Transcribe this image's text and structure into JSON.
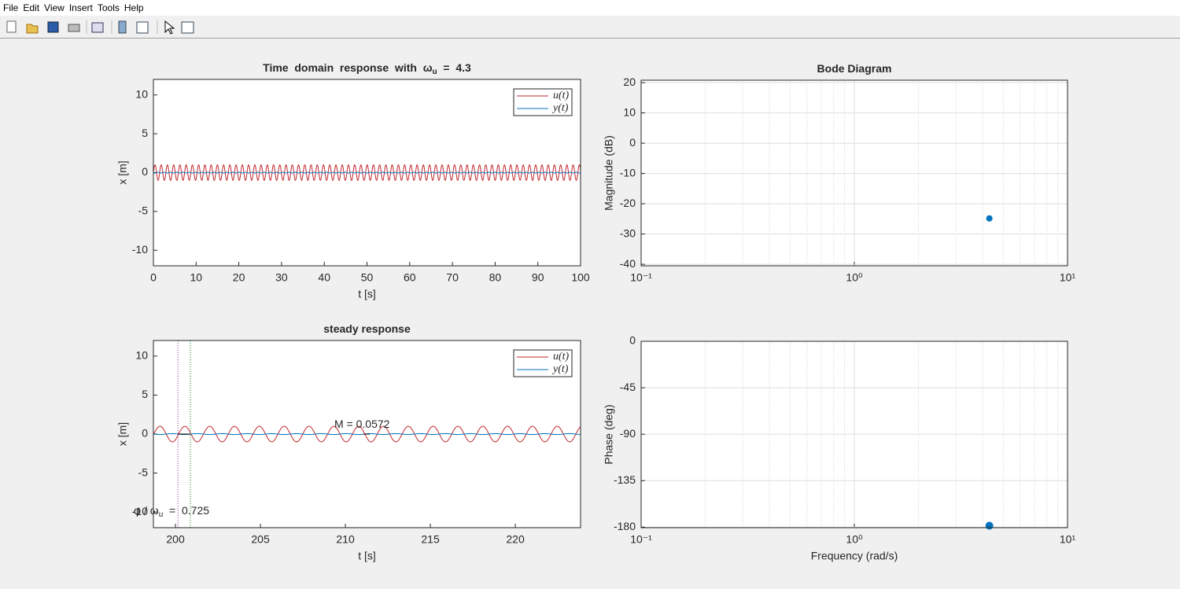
{
  "menu": [
    "File",
    "Edit",
    "View",
    "Insert",
    "Tools",
    "Help"
  ],
  "chart_data": [
    {
      "type": "line",
      "title": {
        "text": "Time  domain  response  with  ω",
        "sub": "u",
        "suffix": "  =  4.3"
      },
      "xlabel": "t [s]",
      "ylabel": "x [m]",
      "xlim": [
        0,
        100
      ],
      "xticks": [
        0,
        10,
        20,
        30,
        40,
        50,
        60,
        70,
        80,
        90,
        100
      ],
      "ylim": [
        -12,
        12
      ],
      "yticks": [
        -10,
        -5,
        0,
        5,
        10
      ],
      "legend": "upper right",
      "series": [
        {
          "name": "u(t)",
          "color": "#c1272d",
          "amplitude": 1,
          "omega": 4.3,
          "delay": 0
        },
        {
          "name": "y(t)",
          "color": "#0072bd",
          "amplitude": 0.0572,
          "omega": 4.3,
          "delay": 0.725
        }
      ]
    },
    {
      "type": "scatter",
      "title": {
        "text": "Bode Diagram"
      },
      "ylabel": "Magnitude (dB)",
      "xscale": "log",
      "xlim": [
        0.1,
        10
      ],
      "xticks": [
        {
          "value": 0.1,
          "label": "10⁻¹"
        },
        {
          "value": 1,
          "label": "10⁰"
        },
        {
          "value": 10,
          "label": "10¹"
        }
      ],
      "ylim": [
        -40.5,
        20.8
      ],
      "yticks": [
        -40,
        -30,
        -20,
        -10,
        0,
        10,
        20
      ],
      "grid": true,
      "x": [
        4.3
      ],
      "values": [
        -24.85
      ],
      "color": "#0072bd"
    },
    {
      "type": "line",
      "title": {
        "text": "steady response"
      },
      "xlabel": "t [s]",
      "ylabel": "x [m]",
      "xlim": [
        198.7,
        223.84
      ],
      "xticks": [
        200,
        205,
        210,
        215,
        220
      ],
      "ylim": [
        -12,
        12
      ],
      "yticks": [
        -10,
        -5,
        0,
        5,
        10
      ],
      "legend": "upper right",
      "series": [
        {
          "name": "u(t)",
          "color": "#c1272d",
          "amplitude": 1,
          "omega": 4.3,
          "delay": 0
        },
        {
          "name": "y(t)",
          "color": "#0072bd",
          "amplitude": 0.0572,
          "omega": 4.3,
          "delay": 0.725
        }
      ],
      "markers": [
        {
          "x": 200.15,
          "color": "#7e2f8e"
        },
        {
          "x": 200.875,
          "color": "#008000"
        }
      ],
      "annotations": [
        {
          "text": "M = 0.0572"
        },
        {
          "text": "φ / ω",
          "sub": "u",
          "suffix": "  =  0.725"
        }
      ]
    },
    {
      "type": "scatter",
      "title": {
        "text": ""
      },
      "ylabel": "Phase (deg)",
      "xlabel": "Frequency (rad/s)",
      "xscale": "log",
      "xlim": [
        0.1,
        10
      ],
      "xticks": [
        {
          "value": 0.1,
          "label": "10⁻¹"
        },
        {
          "value": 1,
          "label": "10⁰"
        },
        {
          "value": 10,
          "label": "10¹"
        }
      ],
      "ylim": [
        -180.5,
        0
      ],
      "yticks": [
        -180,
        -135,
        -90,
        -45,
        0
      ],
      "grid": true,
      "x": [
        4.3
      ],
      "values": [
        -178.6
      ],
      "color": "#0072bd"
    }
  ]
}
